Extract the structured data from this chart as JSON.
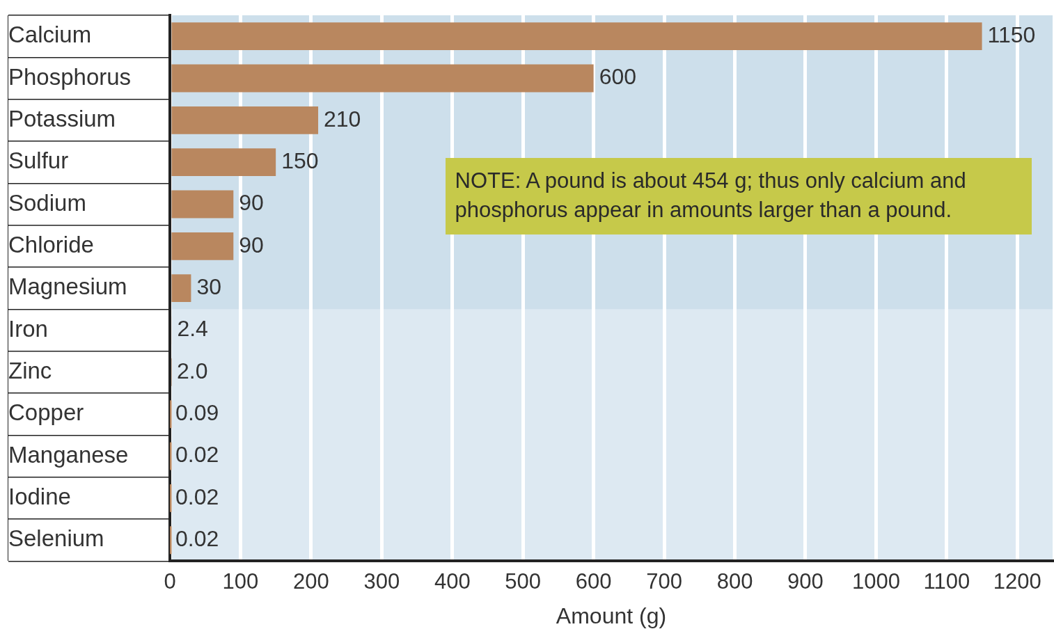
{
  "chart_data": {
    "type": "bar",
    "orientation": "horizontal",
    "xlabel": "Amount (g)",
    "categories": [
      "Calcium",
      "Phosphorus",
      "Potassium",
      "Sulfur",
      "Sodium",
      "Chloride",
      "Magnesium",
      "Iron",
      "Zinc",
      "Copper",
      "Manganese",
      "Iodine",
      "Selenium"
    ],
    "values": [
      1150,
      600,
      210,
      150,
      90,
      90,
      30,
      2.4,
      2.0,
      0.09,
      0.02,
      0.02,
      0.02
    ],
    "value_labels": [
      "1150",
      "600",
      "210",
      "150",
      "90",
      "90",
      "30",
      "2.4",
      "2.0",
      "0.09",
      "0.02",
      "0.02",
      "0.02"
    ],
    "color": "#b9875f",
    "xlim": [
      0,
      1250
    ],
    "xticks": [
      0,
      100,
      200,
      300,
      400,
      500,
      600,
      700,
      800,
      900,
      1000,
      1100,
      1200
    ],
    "grid": "x",
    "legend": false,
    "bands": [
      {
        "axis": "y",
        "from": "Calcium",
        "to": "Magnesium",
        "color": "#cddfeb"
      }
    ],
    "annotations": [
      "NOTE: A pound is about 454 g; thus only calcium and phosphorus appear in amounts larger than a pound."
    ]
  }
}
